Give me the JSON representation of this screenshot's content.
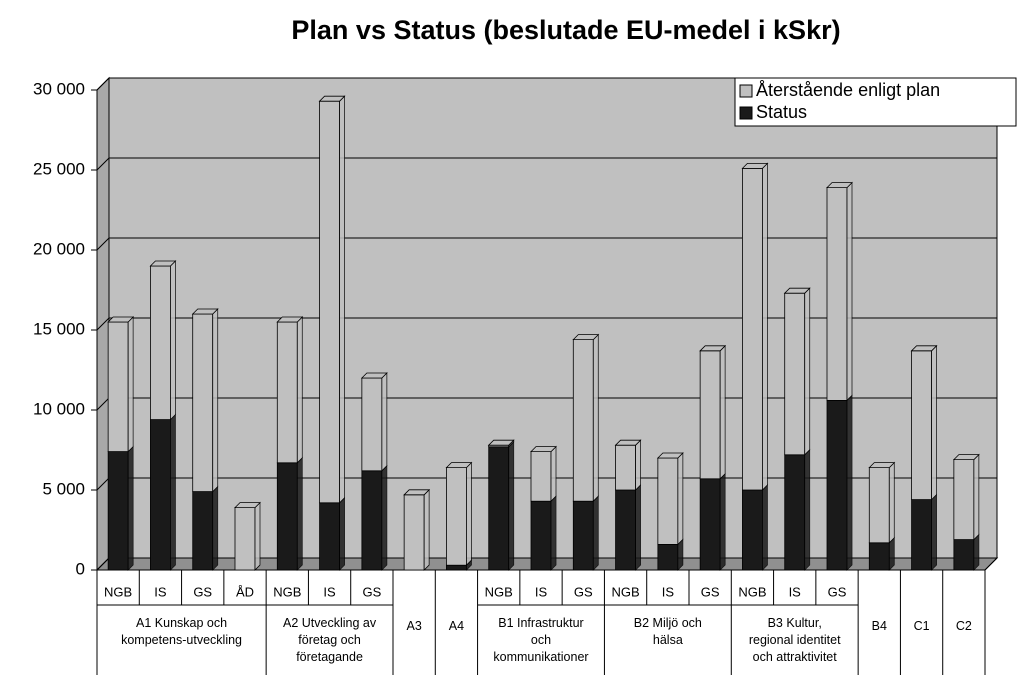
{
  "chart_data": {
    "type": "stacked_bar_3d",
    "title": "Plan vs Status (beslutade EU-medel i kSkr)",
    "groups": [
      {
        "label": "A1 Kunskap och\nkompetens-utveckling",
        "categories": [
          "NGB",
          "IS",
          "GS",
          "ÅD"
        ]
      },
      {
        "label": "A2 Utveckling av\nföretag och\nföretagande",
        "categories": [
          "NGB",
          "IS",
          "GS"
        ]
      },
      {
        "label": "A3",
        "categories": [
          null
        ]
      },
      {
        "label": "A4",
        "categories": [
          null
        ]
      },
      {
        "label": "B1 Infrastruktur\noch\nkommunikationer",
        "categories": [
          "NGB",
          "IS",
          "GS"
        ]
      },
      {
        "label": "B2 Miljö och\nhälsa",
        "categories": [
          "NGB",
          "IS",
          "GS"
        ]
      },
      {
        "label": "B3 Kultur,\nregional identitet\noch attraktivitet",
        "categories": [
          "NGB",
          "IS",
          "GS"
        ]
      },
      {
        "label": "B4",
        "categories": [
          null
        ]
      },
      {
        "label": "C1",
        "categories": [
          null
        ]
      },
      {
        "label": "C2",
        "categories": [
          null
        ]
      }
    ],
    "series": [
      {
        "name": "Status",
        "color": "#1a1a1a",
        "values": [
          7400,
          9400,
          4900,
          0,
          6700,
          4200,
          6200,
          0,
          300,
          7700,
          4300,
          4300,
          5000,
          1600,
          5700,
          5000,
          7200,
          10600,
          1700,
          4400,
          1900
        ]
      },
      {
        "name": "Återstående enligt plan",
        "color": "#c0c0c0",
        "values": [
          8100,
          9600,
          11100,
          3900,
          8800,
          25100,
          5800,
          4700,
          6100,
          100,
          3100,
          10100,
          2800,
          5400,
          8000,
          20100,
          10100,
          13300,
          4700,
          9300,
          5000
        ]
      }
    ],
    "ylim": [
      0,
      30000
    ],
    "yticks": [
      {
        "value": 0,
        "label": "0"
      },
      {
        "value": 5000,
        "label": "5 000"
      },
      {
        "value": 10000,
        "label": "10 000"
      },
      {
        "value": 15000,
        "label": "15 000"
      },
      {
        "value": 20000,
        "label": "20 000"
      },
      {
        "value": 25000,
        "label": "25 000"
      },
      {
        "value": 30000,
        "label": "30 000"
      }
    ],
    "grid": true,
    "legend": "top-right"
  }
}
